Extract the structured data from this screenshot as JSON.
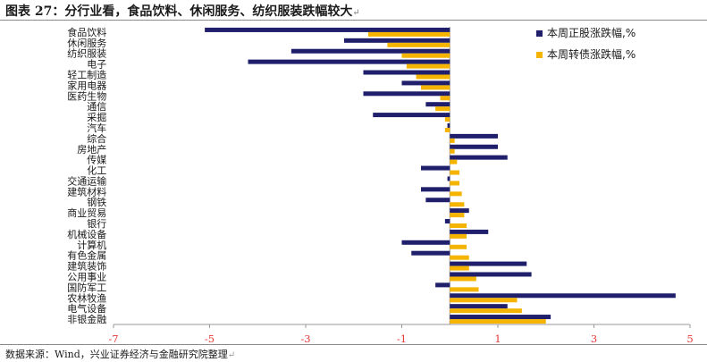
{
  "header": {
    "title": "图表 27：分行业看，食品饮料、休闲服务、纺织服装跌幅较大",
    "return_mark": "↵"
  },
  "footer": {
    "source": "数据来源：Wind，兴业证券经济与金融研究院整理",
    "return_mark": "↵"
  },
  "colors": {
    "stock": "#1f1f6b",
    "bond": "#f5b400",
    "tick_label": "#e53935"
  },
  "chart_data": {
    "type": "bar",
    "orientation": "horizontal",
    "categories": [
      "食品饮料",
      "休闲服务",
      "纺织服装",
      "电子",
      "轻工制造",
      "家用电器",
      "医药生物",
      "通信",
      "采掘",
      "汽车",
      "综合",
      "房地产",
      "传媒",
      "化工",
      "交通运输",
      "建筑材料",
      "钢铁",
      "商业贸易",
      "银行",
      "机械设备",
      "计算机",
      "有色金属",
      "建筑装饰",
      "公用事业",
      "国防军工",
      "农林牧渔",
      "电气设备",
      "非银金融"
    ],
    "series": [
      {
        "name": "本周正股涨跌幅,%",
        "color": "#1f1f6b",
        "values": [
          -5.1,
          -2.2,
          -3.3,
          -4.2,
          -1.8,
          -1.0,
          -1.8,
          -0.5,
          -1.6,
          -0.05,
          1.0,
          1.0,
          1.2,
          -0.6,
          -0.05,
          -0.6,
          -0.5,
          0.4,
          -0.1,
          0.8,
          -1.0,
          -0.8,
          1.6,
          1.7,
          -0.3,
          4.7,
          1.2,
          2.1
        ]
      },
      {
        "name": "本周转债涨跌幅,%",
        "color": "#f5b400",
        "values": [
          -1.7,
          -1.3,
          -1.0,
          -0.9,
          -0.7,
          -0.6,
          -0.2,
          -0.3,
          -0.1,
          -0.1,
          0.1,
          0.1,
          0.15,
          0.2,
          0.2,
          0.25,
          0.3,
          0.3,
          0.35,
          0.35,
          0.35,
          0.4,
          0.4,
          0.55,
          0.6,
          1.4,
          1.5,
          2.0
        ]
      }
    ],
    "xlim": [
      -7,
      5
    ],
    "xticks": [
      "-7",
      "-5",
      "-3",
      "-1",
      "1",
      "3",
      "5"
    ],
    "xlabel": "",
    "ylabel": "",
    "grid": false,
    "legend_position": "top-right"
  }
}
